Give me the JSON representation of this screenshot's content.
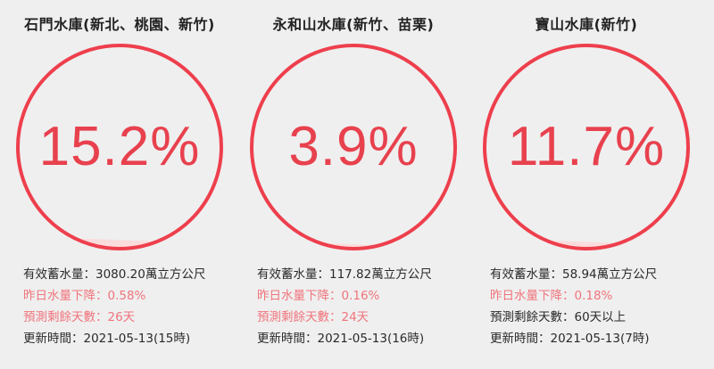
{
  "accent_color": "#e8414e",
  "highlight_color": "#f0747c",
  "reservoirs": [
    {
      "title": "石門水庫(新北、桃園、新竹)",
      "percent_text": "15.2%",
      "percent_value": 15.2,
      "storage": "有效蓄水量：3080.20萬立方公尺",
      "drop": "昨日水量下降：0.58%",
      "days_left": "預測剩餘天數：26天",
      "updated": "更新時間：2021-05-13(15時)",
      "days_left_highlighted": true
    },
    {
      "title": "永和山水庫(新竹、苗栗)",
      "percent_text": "3.9%",
      "percent_value": 3.9,
      "storage": "有效蓄水量：117.82萬立方公尺",
      "drop": "昨日水量下降：0.16%",
      "days_left": "預測剩餘天數：24天",
      "updated": "更新時間：2021-05-13(16時)",
      "days_left_highlighted": true
    },
    {
      "title": "寶山水庫(新竹)",
      "percent_text": "11.7%",
      "percent_value": 11.7,
      "storage": "有效蓄水量：58.94萬立方公尺",
      "drop": "昨日水量下降：0.18%",
      "days_left": "預測剩餘天數：60天以上",
      "updated": "更新時間：2021-05-13(7時)",
      "days_left_highlighted": false
    }
  ]
}
